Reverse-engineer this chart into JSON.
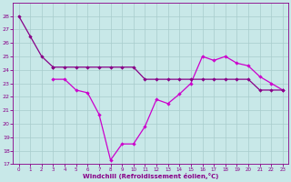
{
  "xlabel": "Windchill (Refroidissement éolien,°C)",
  "background_color": "#c8e8e8",
  "grid_color": "#a8cccc",
  "color1": "#880088",
  "color2": "#cc00cc",
  "hours": [
    0,
    1,
    2,
    3,
    4,
    5,
    6,
    7,
    8,
    9,
    10,
    11,
    12,
    13,
    14,
    15,
    16,
    17,
    18,
    19,
    20,
    21,
    22,
    23
  ],
  "line_drop": [
    28.0,
    26.5,
    25.0,
    24.2,
    null,
    null,
    null,
    null,
    null,
    null,
    null,
    null,
    null,
    null,
    null,
    null,
    null,
    null,
    null,
    null,
    null,
    null,
    null,
    null
  ],
  "line_wc": [
    null,
    null,
    null,
    23.3,
    23.3,
    22.5,
    22.3,
    20.7,
    17.3,
    18.5,
    18.5,
    19.8,
    21.8,
    21.5,
    22.2,
    23.0,
    25.0,
    24.7,
    25.0,
    24.5,
    24.3,
    23.5,
    23.0,
    22.5
  ],
  "line_ref": [
    null,
    null,
    null,
    24.2,
    24.2,
    24.2,
    24.2,
    24.2,
    24.2,
    24.2,
    24.2,
    23.3,
    23.3,
    23.3,
    23.3,
    23.3,
    23.3,
    23.3,
    23.3,
    23.3,
    23.3,
    22.5,
    22.5,
    22.5
  ],
  "ylim": [
    17,
    29
  ],
  "xlim": [
    -0.5,
    23.5
  ],
  "yticks": [
    17,
    18,
    19,
    20,
    21,
    22,
    23,
    24,
    25,
    26,
    27,
    28
  ],
  "xticks": [
    0,
    1,
    2,
    3,
    4,
    5,
    6,
    7,
    8,
    9,
    10,
    11,
    12,
    13,
    14,
    15,
    16,
    17,
    18,
    19,
    20,
    21,
    22,
    23
  ]
}
